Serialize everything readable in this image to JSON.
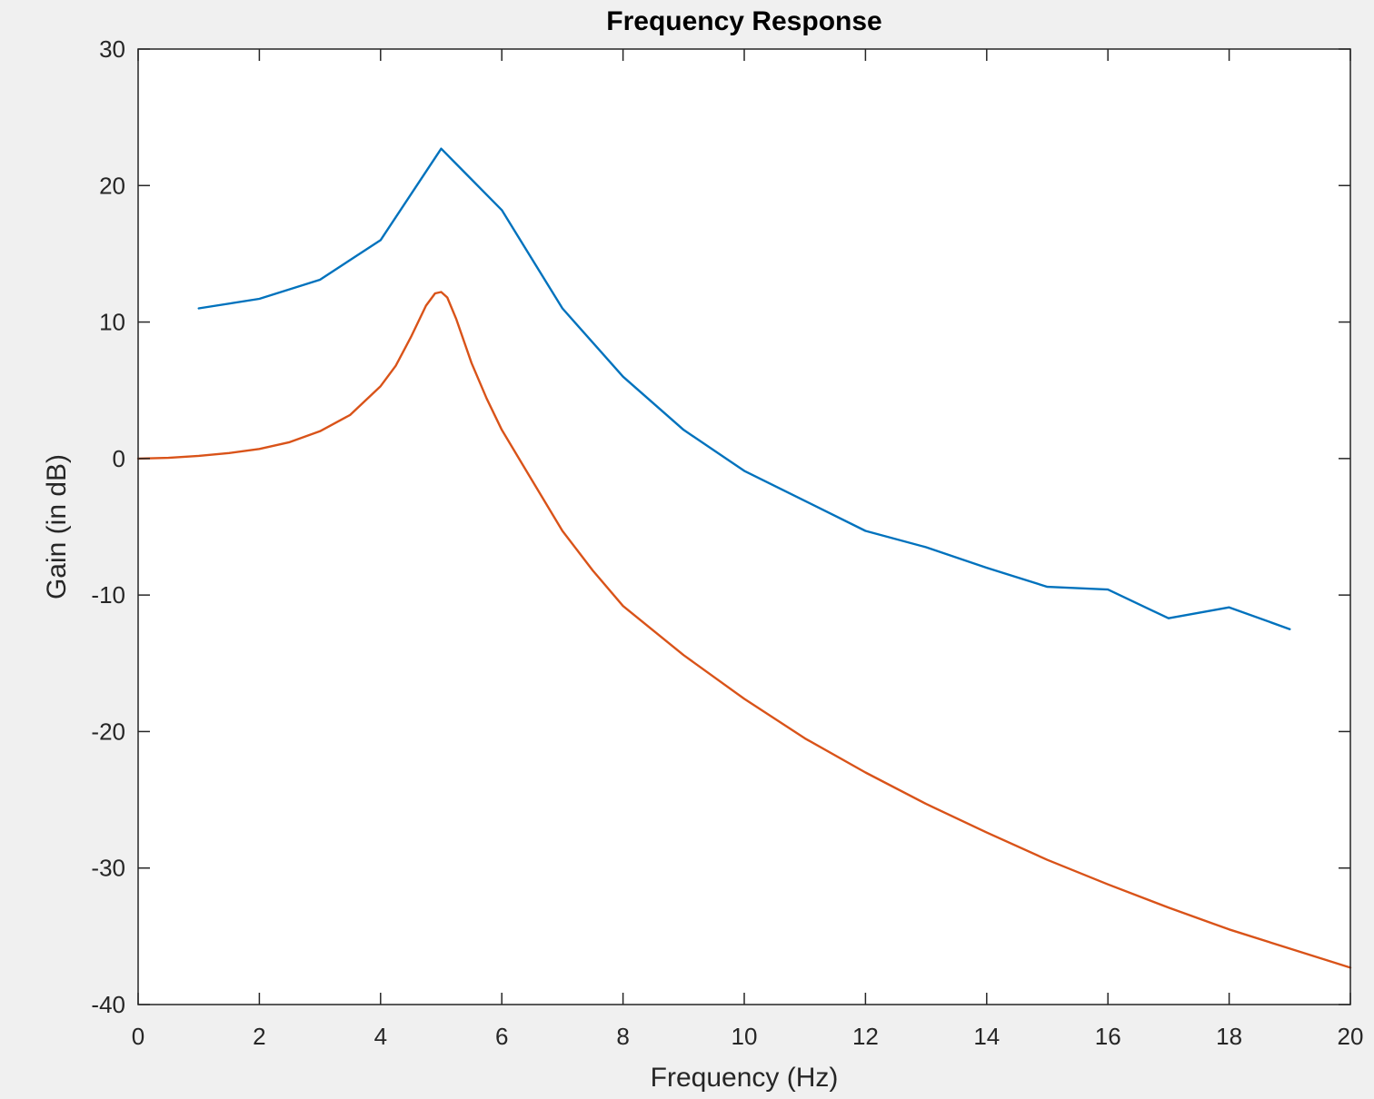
{
  "chart_data": {
    "type": "line",
    "title": "Frequency Response",
    "xlabel": "Frequency (Hz)",
    "ylabel": "Gain (in dB)",
    "xlim": [
      0,
      20
    ],
    "ylim": [
      -40,
      30
    ],
    "xticks": [
      0,
      2,
      4,
      6,
      8,
      10,
      12,
      14,
      16,
      18,
      20
    ],
    "yticks": [
      -40,
      -30,
      -20,
      -10,
      0,
      10,
      20,
      30
    ],
    "grid": false,
    "legend": "none",
    "series": [
      {
        "color": "#0072BD",
        "x": [
          1,
          2,
          3,
          4,
          5,
          6,
          7,
          8,
          9,
          10,
          11,
          12,
          13,
          14,
          15,
          16,
          17,
          18,
          19
        ],
        "y": [
          11,
          11.7,
          13.1,
          16,
          22.7,
          18.2,
          11,
          6,
          2.1,
          -0.9,
          -3.1,
          -5.3,
          -6.5,
          -8,
          -9.4,
          -9.6,
          -11.7,
          -10.9,
          -12.5
        ]
      },
      {
        "color": "#D95319",
        "x": [
          0,
          0.5,
          1,
          1.5,
          2,
          2.5,
          3,
          3.5,
          4,
          4.25,
          4.5,
          4.75,
          4.9,
          5,
          5.1,
          5.25,
          5.5,
          5.75,
          6,
          6.5,
          7,
          7.5,
          8,
          9,
          10,
          11,
          12,
          13,
          14,
          15,
          16,
          17,
          18,
          19,
          20
        ],
        "y": [
          0,
          0.05,
          0.2,
          0.4,
          0.7,
          1.2,
          2,
          3.2,
          5.3,
          6.8,
          8.9,
          11.2,
          12.1,
          12.2,
          11.8,
          10.2,
          7,
          4.4,
          2.1,
          -1.6,
          -5.3,
          -8.2,
          -10.8,
          -14.4,
          -17.6,
          -20.5,
          -23,
          -25.3,
          -27.4,
          -29.4,
          -31.2,
          -32.9,
          -34.5,
          -35.9,
          -37.3
        ]
      }
    ]
  }
}
